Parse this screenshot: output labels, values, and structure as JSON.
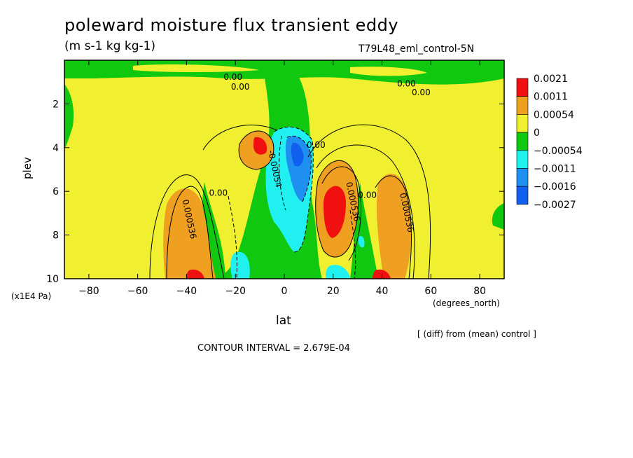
{
  "figure": {
    "title": "poleward moisture flux transient eddy",
    "units": "(m s-1 kg kg-1)",
    "experiment": "T79L48_eml_control-5N",
    "y_unit_note": "(x1E4 Pa)",
    "x_unit_note": "(degrees_north)",
    "diff_note": "[ (diff) from (mean) control ]",
    "contour_interval": "CONTOUR INTERVAL = 2.679E-04"
  },
  "chart_data": {
    "type": "heatmap",
    "xlabel": "lat",
    "ylabel": "plev",
    "xlim": [
      -90,
      90
    ],
    "ylim": [
      10,
      0
    ],
    "x_ticks": [
      -80,
      -60,
      -40,
      -20,
      0,
      20,
      40,
      60,
      80
    ],
    "y_ticks": [
      2,
      4,
      6,
      8,
      10
    ],
    "colorbar": {
      "labels": [
        "0.0021",
        "0.0011",
        "0.00054",
        "0",
        "-0.00054",
        "-0.0011",
        "-0.0016",
        "-0.0027"
      ],
      "colors": [
        "#f01010",
        "#f0a020",
        "#f0f030",
        "#10c810",
        "#20f0f0",
        "#2090f0",
        "#1060f0"
      ]
    },
    "contour_labels": [
      {
        "text": "0.00",
        "lat": -21,
        "plev": 0.9
      },
      {
        "text": "0.00",
        "lat": -18,
        "plev": 1.35
      },
      {
        "text": "0.00",
        "lat": 50,
        "plev": 1.2
      },
      {
        "text": "0.00",
        "lat": 56,
        "plev": 1.6
      },
      {
        "text": "0.000536",
        "lat": -40,
        "plev": 7.3
      },
      {
        "text": "0.00",
        "lat": -27,
        "plev": 6.2
      },
      {
        "text": "-0.00054",
        "lat": -5,
        "plev": 5.0
      },
      {
        "text": "0.00",
        "lat": 13,
        "plev": 4.0
      },
      {
        "text": "0.000536",
        "lat": 27,
        "plev": 6.5
      },
      {
        "text": "0.00",
        "lat": 34,
        "plev": 6.3
      },
      {
        "text": "0.000536",
        "lat": 49,
        "plev": 7.0
      }
    ]
  }
}
